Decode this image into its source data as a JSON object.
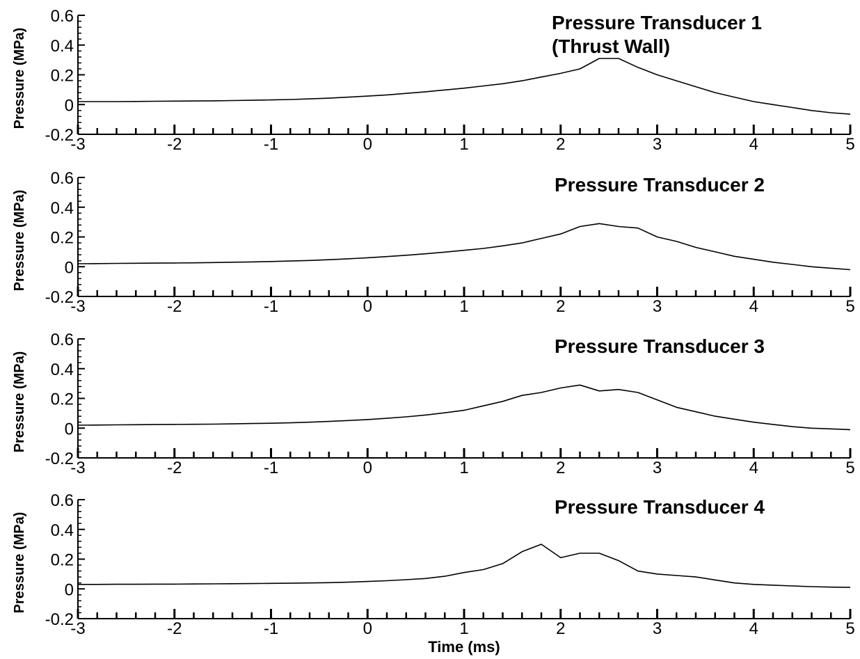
{
  "chart_data": [
    {
      "type": "line",
      "title": "Pressure Transducer 1",
      "subtitle": "(Thrust Wall)",
      "y_label": "Pressure (MPa)",
      "color": "#000000",
      "x": [
        -3,
        -2.8,
        -2.6,
        -2.4,
        -2.2,
        -2,
        -1.8,
        -1.6,
        -1.4,
        -1.2,
        -1,
        -0.8,
        -0.6,
        -0.4,
        -0.2,
        0,
        0.2,
        0.4,
        0.6,
        0.8,
        1,
        1.2,
        1.4,
        1.6,
        1.8,
        2,
        2.2,
        2.4,
        2.6,
        2.8,
        3,
        3.2,
        3.4,
        3.6,
        3.8,
        4,
        4.2,
        4.4,
        4.6,
        4.8,
        5
      ],
      "values": [
        0.02,
        0.02,
        0.02,
        0.021,
        0.022,
        0.023,
        0.024,
        0.025,
        0.027,
        0.029,
        0.031,
        0.034,
        0.038,
        0.043,
        0.05,
        0.057,
        0.065,
        0.075,
        0.086,
        0.098,
        0.11,
        0.125,
        0.14,
        0.16,
        0.185,
        0.21,
        0.24,
        0.31,
        0.31,
        0.25,
        0.2,
        0.16,
        0.12,
        0.08,
        0.05,
        0.02,
        0,
        -0.02,
        -0.04,
        -0.055,
        -0.065
      ],
      "xlim": [
        -3,
        5
      ],
      "xticks": [
        -3,
        -2,
        -1,
        0,
        1,
        2,
        3,
        4,
        5
      ],
      "ylim": [
        -0.2,
        0.6
      ],
      "yticks": [
        -0.2,
        0,
        0.2,
        0.4,
        0.6
      ]
    },
    {
      "type": "line",
      "title": "Pressure Transducer 2",
      "y_label": "Pressure (MPa)",
      "color": "#000000",
      "x": [
        -3,
        -2.8,
        -2.6,
        -2.4,
        -2.2,
        -2,
        -1.8,
        -1.6,
        -1.4,
        -1.2,
        -1,
        -0.8,
        -0.6,
        -0.4,
        -0.2,
        0,
        0.2,
        0.4,
        0.6,
        0.8,
        1,
        1.2,
        1.4,
        1.6,
        1.8,
        2,
        2.2,
        2.4,
        2.6,
        2.8,
        3,
        3.2,
        3.4,
        3.6,
        3.8,
        4,
        4.2,
        4.4,
        4.6,
        4.8,
        5
      ],
      "values": [
        0.02,
        0.021,
        0.022,
        0.023,
        0.024,
        0.025,
        0.026,
        0.028,
        0.03,
        0.032,
        0.035,
        0.038,
        0.042,
        0.047,
        0.053,
        0.06,
        0.068,
        0.077,
        0.087,
        0.098,
        0.11,
        0.123,
        0.14,
        0.16,
        0.19,
        0.22,
        0.27,
        0.29,
        0.27,
        0.26,
        0.2,
        0.17,
        0.13,
        0.1,
        0.07,
        0.05,
        0.03,
        0.015,
        0,
        -0.01,
        -0.02
      ],
      "xlim": [
        -3,
        5
      ],
      "xticks": [
        -3,
        -2,
        -1,
        0,
        1,
        2,
        3,
        4,
        5
      ],
      "ylim": [
        -0.2,
        0.6
      ],
      "yticks": [
        -0.2,
        0,
        0.2,
        0.4,
        0.6
      ]
    },
    {
      "type": "line",
      "title": "Pressure Transducer 3",
      "y_label": "Pressure (MPa)",
      "color": "#000000",
      "x": [
        -3,
        -2.8,
        -2.6,
        -2.4,
        -2.2,
        -2,
        -1.8,
        -1.6,
        -1.4,
        -1.2,
        -1,
        -0.8,
        -0.6,
        -0.4,
        -0.2,
        0,
        0.2,
        0.4,
        0.6,
        0.8,
        1,
        1.2,
        1.4,
        1.6,
        1.8,
        2,
        2.2,
        2.4,
        2.6,
        2.8,
        3,
        3.2,
        3.4,
        3.6,
        3.8,
        4,
        4.2,
        4.4,
        4.6,
        4.8,
        5
      ],
      "values": [
        0.02,
        0.021,
        0.022,
        0.023,
        0.024,
        0.025,
        0.026,
        0.027,
        0.029,
        0.031,
        0.033,
        0.036,
        0.04,
        0.045,
        0.051,
        0.058,
        0.066,
        0.076,
        0.088,
        0.103,
        0.12,
        0.15,
        0.18,
        0.22,
        0.24,
        0.27,
        0.29,
        0.25,
        0.26,
        0.24,
        0.19,
        0.14,
        0.11,
        0.08,
        0.06,
        0.04,
        0.025,
        0.01,
        0,
        -0.005,
        -0.01
      ],
      "xlim": [
        -3,
        5
      ],
      "xticks": [
        -3,
        -2,
        -1,
        0,
        1,
        2,
        3,
        4,
        5
      ],
      "ylim": [
        -0.2,
        0.6
      ],
      "yticks": [
        -0.2,
        0,
        0.2,
        0.4,
        0.6
      ]
    },
    {
      "type": "line",
      "title": "Pressure Transducer 4",
      "x_label": "Time (ms)",
      "y_label": "Pressure (MPa)",
      "color": "#000000",
      "x": [
        -3,
        -2.8,
        -2.6,
        -2.4,
        -2.2,
        -2,
        -1.8,
        -1.6,
        -1.4,
        -1.2,
        -1,
        -0.8,
        -0.6,
        -0.4,
        -0.2,
        0,
        0.2,
        0.4,
        0.6,
        0.8,
        1,
        1.2,
        1.4,
        1.6,
        1.8,
        2,
        2.2,
        2.4,
        2.6,
        2.8,
        3,
        3.2,
        3.4,
        3.6,
        3.8,
        4,
        4.2,
        4.4,
        4.6,
        4.8,
        5
      ],
      "values": [
        0.03,
        0.03,
        0.031,
        0.031,
        0.032,
        0.032,
        0.033,
        0.034,
        0.035,
        0.036,
        0.037,
        0.038,
        0.04,
        0.042,
        0.045,
        0.05,
        0.055,
        0.062,
        0.07,
        0.085,
        0.11,
        0.13,
        0.17,
        0.25,
        0.3,
        0.21,
        0.24,
        0.24,
        0.19,
        0.12,
        0.1,
        0.09,
        0.08,
        0.06,
        0.04,
        0.03,
        0.025,
        0.02,
        0.015,
        0.012,
        0.01
      ],
      "xlim": [
        -3,
        5
      ],
      "xticks": [
        -3,
        -2,
        -1,
        0,
        1,
        2,
        3,
        4,
        5
      ],
      "ylim": [
        -0.2,
        0.6
      ],
      "yticks": [
        -0.2,
        0,
        0.2,
        0.4,
        0.6
      ]
    }
  ]
}
